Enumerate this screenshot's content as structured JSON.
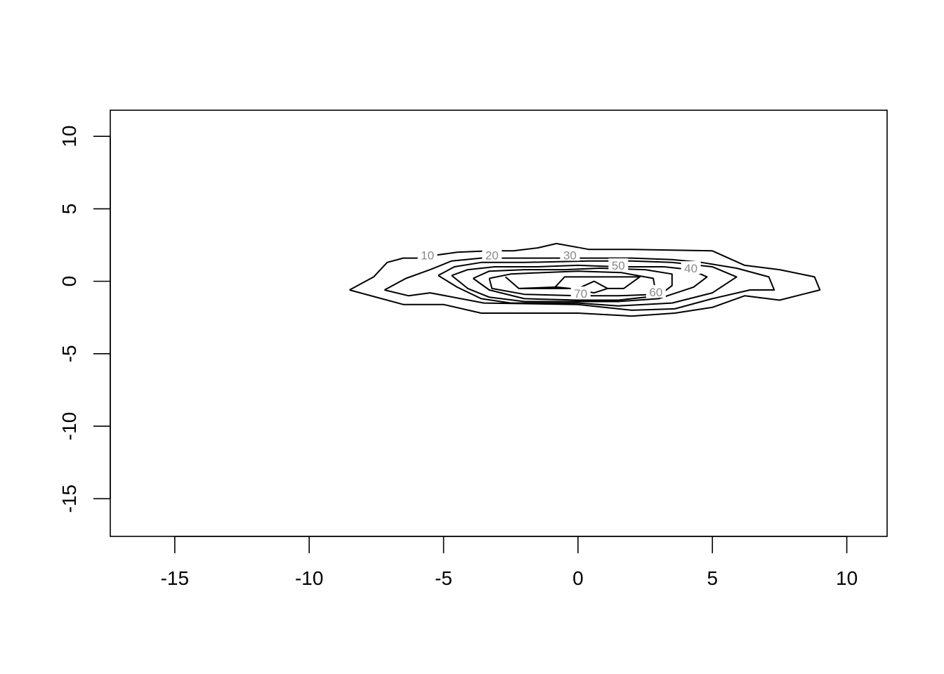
{
  "chart_data": {
    "type": "contour",
    "title": "",
    "xlabel": "",
    "ylabel": "",
    "xlim": [
      -17.4,
      11.5
    ],
    "ylim": [
      -17.6,
      11.8
    ],
    "x_ticks": [
      "-15",
      "-10",
      "-5",
      "0",
      "5",
      "10"
    ],
    "y_ticks": [
      "-15",
      "-10",
      "-5",
      "0",
      "5",
      "10"
    ],
    "grid": false,
    "legend": "none",
    "series": [
      {
        "name": "10",
        "label_at": [
          -5.6,
          1.8
        ],
        "points": [
          [
            -8.5,
            -0.6
          ],
          [
            -6.5,
            -1.6
          ],
          [
            -5.0,
            -1.6
          ],
          [
            -3.6,
            -2.2
          ],
          [
            0,
            -2.2
          ],
          [
            2,
            -2.4
          ],
          [
            3.6,
            -2.2
          ],
          [
            5,
            -1.8
          ],
          [
            6.2,
            -1.0
          ],
          [
            7.5,
            -1.3
          ],
          [
            9,
            -0.6
          ],
          [
            8.8,
            0.3
          ],
          [
            7.5,
            0.8
          ],
          [
            6.2,
            1.1
          ],
          [
            5,
            2.1
          ],
          [
            2,
            2.2
          ],
          [
            0.4,
            2.2
          ],
          [
            -0.8,
            2.6
          ],
          [
            -1.5,
            2.3
          ],
          [
            -2.4,
            2.1
          ],
          [
            -3.3,
            2.1
          ],
          [
            -4.5,
            2.0
          ],
          [
            -5.3,
            1.8
          ],
          [
            -6.0,
            1.6
          ],
          [
            -6.5,
            1.6
          ],
          [
            -7.1,
            1.3
          ],
          [
            -7.6,
            0.3
          ],
          [
            -8.5,
            -0.6
          ]
        ]
      },
      {
        "name": "20",
        "label_at": [
          -3.2,
          1.8
        ],
        "points": [
          [
            -7.2,
            -0.6
          ],
          [
            -6.3,
            -1.0
          ],
          [
            -5.5,
            -0.8
          ],
          [
            -3.5,
            -1.5
          ],
          [
            0,
            -1.6
          ],
          [
            2,
            -2.0
          ],
          [
            3.6,
            -1.9
          ],
          [
            5,
            -1.2
          ],
          [
            6.4,
            -0.6
          ],
          [
            7.3,
            -0.6
          ],
          [
            7.1,
            0.3
          ],
          [
            5.9,
            0.9
          ],
          [
            4.6,
            1.3
          ],
          [
            3.5,
            1.5
          ],
          [
            2,
            1.6
          ],
          [
            0,
            1.6
          ],
          [
            -1.5,
            1.6
          ],
          [
            -2.5,
            1.6
          ],
          [
            -3.6,
            1.6
          ],
          [
            -4.7,
            1.4
          ],
          [
            -5.5,
            0.8
          ],
          [
            -6.4,
            0.2
          ],
          [
            -7.2,
            -0.6
          ]
        ]
      },
      {
        "name": "30",
        "label_at": [
          -0.3,
          1.8
        ],
        "points": [
          [
            -5.2,
            0.4
          ],
          [
            -4.5,
            -0.4
          ],
          [
            -3.6,
            -1.2
          ],
          [
            -2.5,
            -1.5
          ],
          [
            0,
            -1.5
          ],
          [
            1.5,
            -1.7
          ],
          [
            3.5,
            -1.5
          ],
          [
            5.0,
            -0.8
          ],
          [
            5.9,
            0.3
          ],
          [
            5.0,
            1.0
          ],
          [
            3.5,
            1.3
          ],
          [
            2.0,
            1.4
          ],
          [
            0.4,
            1.4
          ],
          [
            -2,
            1.3
          ],
          [
            -3.6,
            1.3
          ],
          [
            -4.6,
            1.0
          ],
          [
            -5.2,
            0.4
          ]
        ]
      },
      {
        "name": "40",
        "label_at": [
          4.2,
          0.9
        ],
        "points": [
          [
            -4.7,
            0.4
          ],
          [
            -4.1,
            -0.5
          ],
          [
            -3.3,
            -1.1
          ],
          [
            -2,
            -1.4
          ],
          [
            0,
            -1.4
          ],
          [
            1.5,
            -1.4
          ],
          [
            3.0,
            -1.2
          ],
          [
            4.3,
            -0.4
          ],
          [
            4.8,
            0.3
          ],
          [
            4.2,
            0.8
          ],
          [
            3.2,
            1.0
          ],
          [
            1.5,
            1.0
          ],
          [
            0,
            1.1
          ],
          [
            -1.5,
            1.0
          ],
          [
            -3.1,
            1.0
          ],
          [
            -4.1,
            0.8
          ],
          [
            -4.7,
            0.4
          ]
        ]
      },
      {
        "name": "50",
        "label_at": [
          1.5,
          1.1
        ],
        "points": [
          [
            -3.9,
            0.2
          ],
          [
            -3.3,
            -0.6
          ],
          [
            -2.0,
            -1.2
          ],
          [
            0,
            -1.3
          ],
          [
            1.5,
            -1.3
          ],
          [
            3.0,
            -1.0
          ],
          [
            3.5,
            -0.3
          ],
          [
            3.5,
            0.5
          ],
          [
            2.5,
            0.8
          ],
          [
            0.8,
            0.9
          ],
          [
            -0.5,
            0.8
          ],
          [
            -2.0,
            0.8
          ],
          [
            -3.3,
            0.7
          ],
          [
            -3.9,
            0.2
          ]
        ]
      },
      {
        "name": "60",
        "label_at": [
          2.9,
          -0.75
        ],
        "points": [
          [
            -3.3,
            0.2
          ],
          [
            -3.2,
            -0.5
          ],
          [
            -2.0,
            -0.9
          ],
          [
            0,
            -1.0
          ],
          [
            1.5,
            -1.0
          ],
          [
            2.9,
            -0.9
          ],
          [
            2.8,
            0.2
          ],
          [
            1.6,
            0.6
          ],
          [
            0,
            0.7
          ],
          [
            -1.3,
            0.6
          ],
          [
            -2.5,
            0.5
          ],
          [
            -3.3,
            0.2
          ]
        ]
      },
      {
        "name": "70",
        "label_at": [
          0.1,
          -0.85
        ],
        "points": [
          [
            -2.7,
            0.3
          ],
          [
            -2.2,
            -0.5
          ],
          [
            -0.8,
            -0.4
          ],
          [
            -0.3,
            -0.5
          ],
          [
            0.6,
            -0.8
          ],
          [
            1.1,
            -0.5
          ],
          [
            0.6,
            0.0
          ],
          [
            0.0,
            -0.5
          ],
          [
            -0.9,
            -0.5
          ],
          [
            -0.5,
            0.3
          ],
          [
            0.5,
            0.3
          ],
          [
            2.3,
            0.3
          ],
          [
            1.7,
            -0.5
          ],
          [
            1.1,
            -0.5
          ],
          [
            0.6,
            -0.8
          ],
          [
            -0.3,
            -0.5
          ],
          [
            -2.2,
            -0.5
          ],
          [
            -2.7,
            0.3
          ]
        ]
      }
    ]
  }
}
